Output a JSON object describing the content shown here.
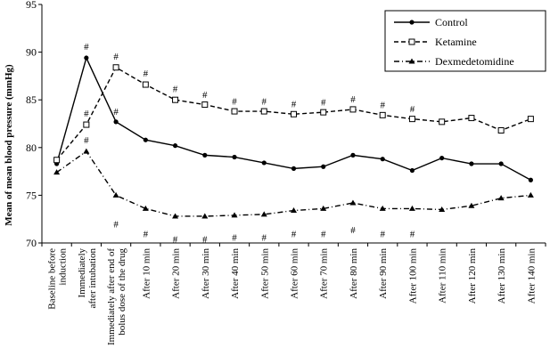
{
  "chart_data": {
    "type": "line",
    "title": "",
    "xlabel": "",
    "ylabel": "Mean of mean blood pressure (mmHg)",
    "ylim": [
      70,
      95
    ],
    "yticks": [
      70,
      75,
      80,
      85,
      90,
      95
    ],
    "grid": false,
    "legend_position": "top-right",
    "categories": [
      "Baseline before induction",
      "Immediately after intubation",
      "Immediately after end of bolus dose of the drug",
      "After 10 min",
      "After 20 min",
      "After 30 min",
      "After 40 min",
      "After 50 min",
      "After 60 min",
      "After 70 min",
      "After 80 min",
      "After 90 min",
      "After 100 min",
      "After 110 min",
      "After 120 min",
      "After 130 min",
      "After 140 min"
    ],
    "category_lines": [
      [
        "Baseline before",
        "induction"
      ],
      [
        "Immediately",
        "after intubation"
      ],
      [
        "Immediately after end of",
        "bolus dose of the drug"
      ],
      [
        "After 10 min"
      ],
      [
        "After 20 min"
      ],
      [
        "After 30 min"
      ],
      [
        "After 40 min"
      ],
      [
        "After 50 min"
      ],
      [
        "After 60 min"
      ],
      [
        "After 70 min"
      ],
      [
        "After 80 min"
      ],
      [
        "After 90 min"
      ],
      [
        "After 100 min"
      ],
      [
        "After 110 min"
      ],
      [
        "After 120 min"
      ],
      [
        "After 130 min"
      ],
      [
        "After 140 min"
      ]
    ],
    "series": [
      {
        "name": "Control",
        "marker": "filled-circle",
        "line": "solid",
        "values": [
          78.3,
          89.4,
          82.7,
          80.8,
          80.2,
          79.2,
          79.0,
          78.4,
          77.8,
          78.0,
          79.2,
          78.8,
          77.6,
          78.9,
          78.3,
          78.3,
          76.6
        ]
      },
      {
        "name": "Ketamine",
        "marker": "open-square",
        "line": "dashed",
        "values": [
          78.7,
          82.4,
          88.4,
          86.6,
          85.0,
          84.5,
          83.8,
          83.8,
          83.5,
          83.7,
          84.0,
          83.4,
          83.0,
          82.7,
          83.1,
          81.8,
          83.0
        ]
      },
      {
        "name": "Dexmedetomidine",
        "marker": "filled-triangle",
        "line": "dash-dot",
        "values": [
          77.4,
          79.6,
          75.0,
          73.6,
          72.8,
          72.8,
          72.9,
          73.0,
          73.4,
          73.6,
          74.2,
          73.6,
          73.6,
          73.5,
          73.9,
          74.7,
          75.0
        ]
      }
    ],
    "annotations": [
      {
        "text": "#",
        "category_index": 1,
        "y": 90.6
      },
      {
        "text": "#",
        "category_index": 1,
        "y": 83.6
      },
      {
        "text": "#",
        "category_index": 2,
        "y": 89.6
      },
      {
        "text": "#",
        "category_index": 2,
        "y": 83.8
      },
      {
        "text": "#",
        "category_index": 3,
        "y": 87.8
      },
      {
        "text": "#",
        "category_index": 4,
        "y": 86.2
      },
      {
        "text": "#",
        "category_index": 5,
        "y": 85.6
      },
      {
        "text": "#",
        "category_index": 6,
        "y": 84.9
      },
      {
        "text": "#",
        "category_index": 7,
        "y": 84.9
      },
      {
        "text": "#",
        "category_index": 8,
        "y": 84.6
      },
      {
        "text": "#",
        "category_index": 9,
        "y": 84.8
      },
      {
        "text": "#",
        "category_index": 10,
        "y": 85.1
      },
      {
        "text": "#",
        "category_index": 11,
        "y": 84.5
      },
      {
        "text": "#",
        "category_index": 12,
        "y": 84.1
      },
      {
        "text": "#",
        "category_index": 1,
        "y": 80.8
      },
      {
        "text": "#",
        "category_index": 2,
        "y": 72.0
      },
      {
        "text": "#",
        "category_index": 3,
        "y": 71.0
      },
      {
        "text": "#",
        "category_index": 4,
        "y": 70.4
      },
      {
        "text": "#",
        "category_index": 5,
        "y": 70.4
      },
      {
        "text": "#",
        "category_index": 6,
        "y": 70.6
      },
      {
        "text": "#",
        "category_index": 7,
        "y": 70.6
      },
      {
        "text": "#",
        "category_index": 8,
        "y": 71.0
      },
      {
        "text": "#",
        "category_index": 9,
        "y": 71.0
      },
      {
        "text": "#",
        "category_index": 10,
        "y": 71.4
      },
      {
        "text": "#",
        "category_index": 11,
        "y": 71.0
      },
      {
        "text": "#",
        "category_index": 12,
        "y": 71.0
      }
    ]
  }
}
